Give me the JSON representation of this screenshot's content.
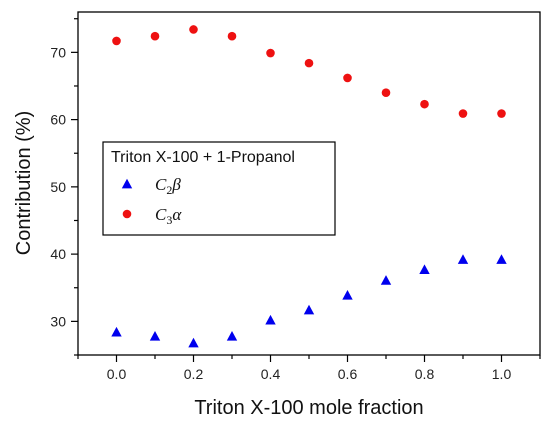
{
  "chart_data": {
    "type": "scatter",
    "title": "",
    "xlabel": "Triton X-100 mole fraction",
    "ylabel": "Contribution (%)",
    "xlim": [
      -0.1,
      1.1
    ],
    "ylim": [
      25,
      76
    ],
    "xticks": [
      0.0,
      0.2,
      0.4,
      0.6,
      0.8,
      1.0
    ],
    "xtick_labels": [
      "0.0",
      "0.2",
      "0.4",
      "0.6",
      "0.8",
      "1.0"
    ],
    "yticks": [
      30,
      40,
      50,
      60,
      70
    ],
    "ytick_labels": [
      "30",
      "40",
      "50",
      "60",
      "70"
    ],
    "grid": false,
    "legend": {
      "title": "Triton X-100 + 1-Propanol",
      "placement": "center-left"
    },
    "series": [
      {
        "name": "C2β",
        "label_main": "C",
        "label_sub": "2",
        "label_greek": "β",
        "marker": "triangle",
        "color": "#0000ee",
        "x": [
          0.0,
          0.1,
          0.2,
          0.3,
          0.4,
          0.5,
          0.6,
          0.7,
          0.8,
          0.9,
          1.0
        ],
        "y": [
          28.4,
          27.8,
          26.8,
          27.8,
          30.2,
          31.7,
          33.9,
          36.1,
          37.7,
          39.2,
          39.2
        ]
      },
      {
        "name": "C3α",
        "label_main": "C",
        "label_sub": "3",
        "label_greek": "α",
        "marker": "circle",
        "color": "#ee1111",
        "x": [
          0.0,
          0.1,
          0.2,
          0.3,
          0.4,
          0.5,
          0.6,
          0.7,
          0.8,
          0.9,
          1.0
        ],
        "y": [
          71.7,
          72.4,
          73.4,
          72.4,
          69.9,
          68.4,
          66.2,
          64.0,
          62.3,
          60.9,
          60.9
        ]
      }
    ]
  }
}
